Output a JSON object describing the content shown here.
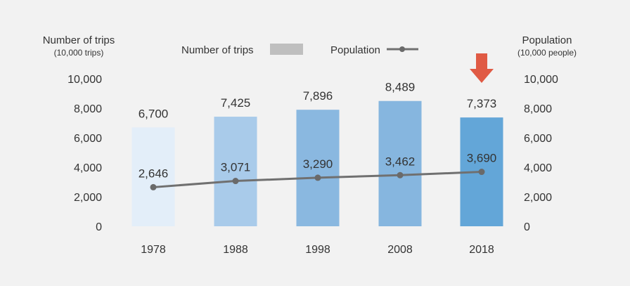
{
  "chart_data": {
    "type": "bar",
    "categories": [
      "1978",
      "1988",
      "1998",
      "2008",
      "2018"
    ],
    "series": [
      {
        "name": "Number of trips",
        "type": "bar",
        "axis": "left",
        "values": [
          6700,
          7425,
          7896,
          8489,
          7373
        ],
        "value_labels": [
          "6,700",
          "7,425",
          "7,896",
          "8,489",
          "7,373"
        ],
        "colors": [
          "#e3eef9",
          "#a9cbea",
          "#8ab8e0",
          "#86b6df",
          "#63a6d8"
        ],
        "legend_color": "#bfbfbf"
      },
      {
        "name": "Population",
        "type": "line",
        "axis": "right",
        "values": [
          2646,
          3071,
          3290,
          3462,
          3690
        ],
        "value_labels": [
          "2,646",
          "3,071",
          "3,290",
          "3,462",
          "3,690"
        ],
        "line_color": "#707070",
        "marker_color": "#6a6a6a"
      }
    ],
    "left_axis": {
      "title": "Number of trips",
      "unit": "(10,000 trips)",
      "range": [
        0,
        10000
      ],
      "ticks": [
        "0",
        "2,000",
        "4,000",
        "6,000",
        "8,000",
        "10,000"
      ]
    },
    "right_axis": {
      "title": "Population",
      "unit": "(10,000 people)",
      "range": [
        0,
        10000
      ],
      "ticks": [
        "0",
        "2,000",
        "4,000",
        "6,000",
        "8,000",
        "10,000"
      ]
    },
    "legend": {
      "placement": "top-center",
      "items": [
        "Number of trips",
        "Population"
      ]
    },
    "highlight": {
      "category": "2018",
      "marker": "down-arrow",
      "color": "#e05a44"
    },
    "grid": false,
    "text_color": "#333333",
    "highlight_label_color": "#ffffff"
  }
}
